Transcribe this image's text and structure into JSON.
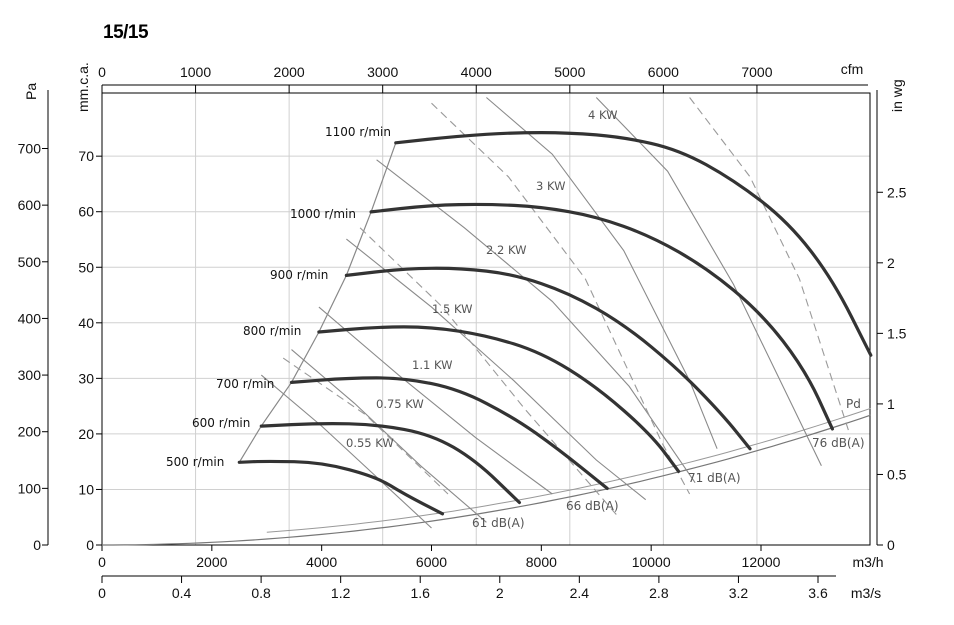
{
  "title": "15/15",
  "chart_data": {
    "type": "line",
    "title": "15/15",
    "x_axis_main": {
      "label": "m3/h",
      "range": [
        0,
        14000
      ],
      "ticks": [
        0,
        2000,
        4000,
        6000,
        8000,
        10000,
        12000
      ]
    },
    "x_axis_top": {
      "label": "cfm",
      "range": [
        0,
        8240
      ],
      "ticks": [
        0,
        1000,
        2000,
        3000,
        4000,
        5000,
        6000,
        7000
      ]
    },
    "x_axis_bottom": {
      "label": "m3/s",
      "range": [
        0,
        3.89
      ],
      "ticks": [
        0,
        0.4,
        0.8,
        1.2,
        1.6,
        2,
        2.4,
        2.8,
        3.2,
        3.6
      ]
    },
    "y_axis_pa": {
      "label": "Pa",
      "range": [
        0,
        790
      ],
      "ticks": [
        0,
        100,
        200,
        300,
        400,
        500,
        600,
        700
      ]
    },
    "y_axis_mmca": {
      "label": "mm.c.a.",
      "range": [
        0,
        80
      ],
      "ticks": [
        0,
        10,
        20,
        30,
        40,
        50,
        60,
        70
      ]
    },
    "y_axis_inwg": {
      "label": "in wg",
      "range": [
        0,
        3.17
      ],
      "ticks": [
        0,
        0.5,
        1,
        1.5,
        2,
        2.5
      ]
    },
    "speed_curves": [
      {
        "name": "500 r/min",
        "points": [
          [
            2500,
            146
          ],
          [
            3000,
            148
          ],
          [
            4000,
            146
          ],
          [
            5000,
            120
          ],
          [
            5500,
            90
          ],
          [
            6200,
            55
          ]
        ]
      },
      {
        "name": "600 r/min",
        "points": [
          [
            2900,
            210
          ],
          [
            4000,
            215
          ],
          [
            5000,
            213
          ],
          [
            6000,
            195
          ],
          [
            6800,
            150
          ],
          [
            7600,
            75
          ]
        ]
      },
      {
        "name": "700 r/min",
        "points": [
          [
            3450,
            287
          ],
          [
            4500,
            295
          ],
          [
            5500,
            295
          ],
          [
            6500,
            275
          ],
          [
            7500,
            225
          ],
          [
            8300,
            170
          ],
          [
            9200,
            100
          ]
        ]
      },
      {
        "name": "800 r/min",
        "points": [
          [
            3950,
            376
          ],
          [
            5000,
            385
          ],
          [
            6000,
            385
          ],
          [
            7000,
            370
          ],
          [
            8000,
            340
          ],
          [
            9000,
            280
          ],
          [
            10000,
            195
          ],
          [
            10500,
            130
          ]
        ]
      },
      {
        "name": "900 r/min",
        "points": [
          [
            4450,
            476
          ],
          [
            5500,
            488
          ],
          [
            6500,
            489
          ],
          [
            7500,
            478
          ],
          [
            8500,
            445
          ],
          [
            9500,
            390
          ],
          [
            10500,
            310
          ],
          [
            11300,
            230
          ],
          [
            11800,
            170
          ]
        ]
      },
      {
        "name": "1000 r/min",
        "points": [
          [
            4900,
            588
          ],
          [
            6000,
            600
          ],
          [
            7000,
            602
          ],
          [
            8000,
            597
          ],
          [
            9000,
            580
          ],
          [
            10000,
            545
          ],
          [
            11000,
            490
          ],
          [
            12000,
            410
          ],
          [
            12800,
            310
          ],
          [
            13300,
            205
          ]
        ]
      },
      {
        "name": "1100 r/min",
        "points": [
          [
            5350,
            710
          ],
          [
            6500,
            722
          ],
          [
            7500,
            728
          ],
          [
            8500,
            728
          ],
          [
            9500,
            720
          ],
          [
            10500,
            698
          ],
          [
            11500,
            645
          ],
          [
            12500,
            570
          ],
          [
            13300,
            470
          ],
          [
            14000,
            335
          ]
        ]
      }
    ],
    "power_lines": [
      {
        "name": "0.55 KW",
        "values_label": "0.55 KW"
      },
      {
        "name": "0.75 KW",
        "values_label": "0.75 KW"
      },
      {
        "name": "1.1 KW",
        "values_label": "1.1 KW"
      },
      {
        "name": "1.5 KW",
        "values_label": "1.5 KW"
      },
      {
        "name": "2.2 KW",
        "values_label": "2.2 KW"
      },
      {
        "name": "3 KW",
        "values_label": "3 KW"
      },
      {
        "name": "4 KW",
        "values_label": "4 KW"
      }
    ],
    "noise_labels": [
      "61 dB(A)",
      "66 dB(A)",
      "71 dB(A)",
      "76 dB(A)"
    ],
    "dynamic_pressure_label": "Pd",
    "grid": true,
    "legend": "none"
  },
  "colors": {
    "speed_curve": "#333333",
    "kw_line": "#888888",
    "grid": "#cccccc",
    "axis": "#000000"
  }
}
